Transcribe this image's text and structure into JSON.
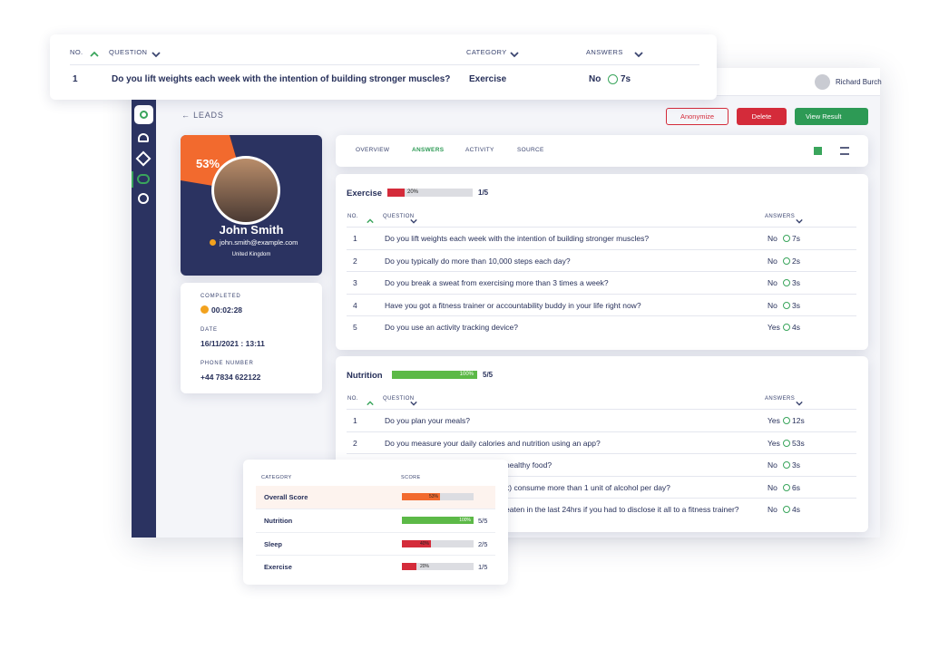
{
  "top_card": {
    "headers": [
      "NO.",
      "QUESTION",
      "CATEGORY",
      "ANSWERS"
    ],
    "row": {
      "no": "1",
      "question": "Do you lift weights each week with the intention of building stronger muscles?",
      "category": "Exercise",
      "answer": "No",
      "time": "7s"
    }
  },
  "user": {
    "name": "Richard Burch"
  },
  "nav": {
    "back": "LEADS"
  },
  "actions": {
    "anonymize": "Anonymize",
    "delete": "Delete",
    "view": "View Result"
  },
  "profile": {
    "score_label": "53%",
    "name": "John Smith",
    "email": "john.smith@example.com",
    "location": "United Kingdom"
  },
  "details": [
    {
      "label": "COMPLETED",
      "value": "00:02:28"
    },
    {
      "label": "DATE",
      "value": "16/11/2021 : 13:11"
    },
    {
      "label": "PHONE NUMBER",
      "value": "+44 7834 622122"
    }
  ],
  "tabs": [
    "OVERVIEW",
    "ANSWERS",
    "ACTIVITY",
    "SOURCE"
  ],
  "sections": [
    {
      "title": "Exercise",
      "progress": 20,
      "progress_label": "20%",
      "color": "#d42b3a",
      "count": "1/5",
      "headers": [
        "NO.",
        "QUESTION",
        "ANSWERS"
      ],
      "rows": [
        {
          "no": "1",
          "question": "Do you lift weights each week with the intention of building stronger muscles?",
          "answer": "No",
          "time": "7s"
        },
        {
          "no": "2",
          "question": "Do you typically do more than 10,000 steps each day?",
          "answer": "No",
          "time": "2s"
        },
        {
          "no": "3",
          "question": "Do you break a sweat from exercising more than 3 times a week?",
          "answer": "No",
          "time": "3s"
        },
        {
          "no": "4",
          "question": "Have you got a fitness trainer or accountability buddy in your life right now?",
          "answer": "No",
          "time": "3s"
        },
        {
          "no": "5",
          "question": "Do you use an activity tracking device?",
          "answer": "Yes",
          "time": "4s"
        }
      ]
    },
    {
      "title": "Nutrition",
      "progress": 100,
      "progress_label": "100%",
      "color": "#5cb947",
      "count": "5/5",
      "headers": [
        "NO.",
        "QUESTION",
        "ANSWERS"
      ],
      "rows": [
        {
          "no": "1",
          "question": "Do you plan your meals?",
          "answer": "Yes",
          "time": "12s"
        },
        {
          "no": "2",
          "question": "Do you measure your daily calories and nutrition using an app?",
          "answer": "Yes",
          "time": "53s"
        },
        {
          "question": "healthy food?",
          "answer": "No",
          "time": "3s"
        },
        {
          "question": "k) consume more than 1 unit of alcohol per day?",
          "answer": "No",
          "time": "6s"
        },
        {
          "question": "eaten in the last 24hrs if you had to disclose it all to a fitness trainer?",
          "answer": "No",
          "time": "4s"
        }
      ]
    }
  ],
  "score_card": {
    "headers": [
      "CATEGORY",
      "SCORE"
    ],
    "rows": [
      {
        "category": "Overall Score",
        "score": 53,
        "score_label": "53%",
        "color": "#f26a2e"
      },
      {
        "category": "Nutrition",
        "score": 100,
        "score_label": "100%",
        "color": "#5cb947",
        "count": "5/5"
      },
      {
        "category": "Sleep",
        "score": 40,
        "score_label": "40%",
        "color": "#d42b3a",
        "count": "2/5"
      },
      {
        "category": "Exercise",
        "score": 20,
        "score_label": "20%",
        "color": "#d42b3a",
        "count": "1/5"
      }
    ]
  }
}
